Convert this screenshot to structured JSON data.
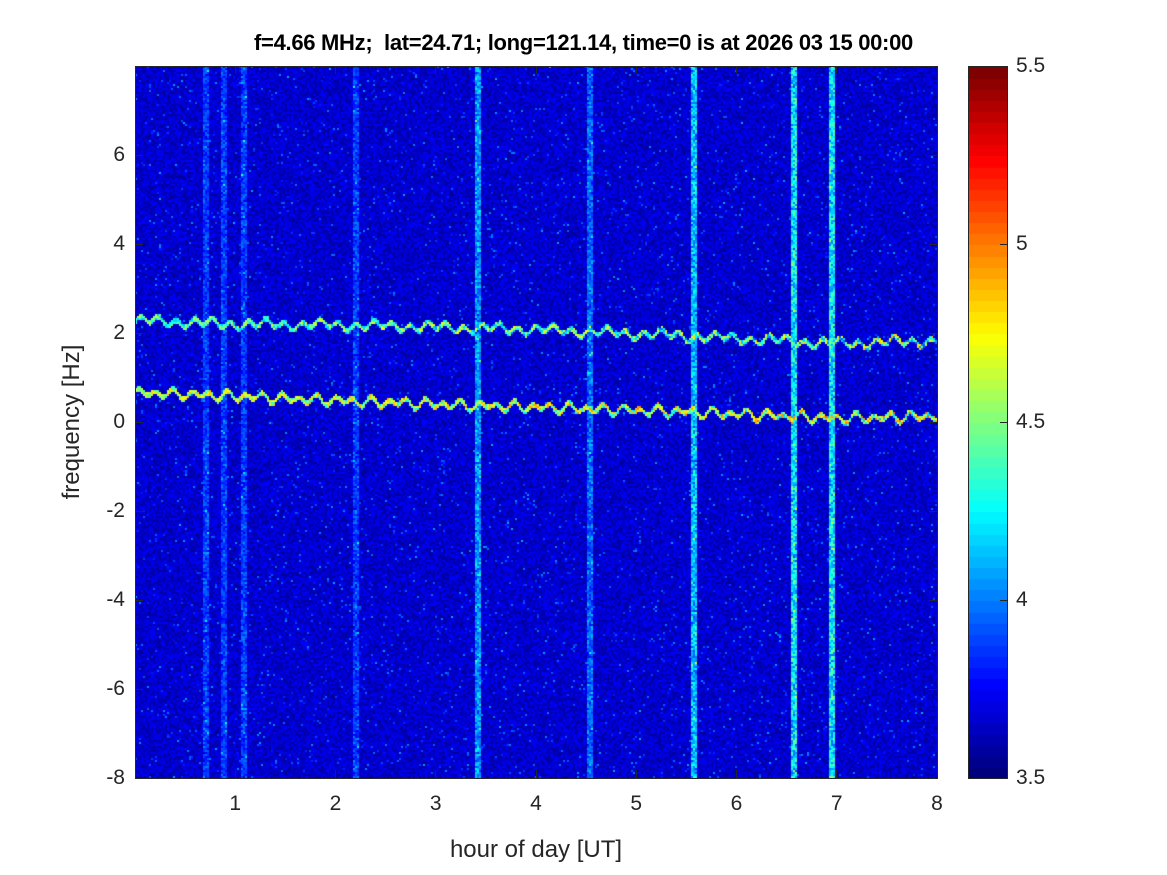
{
  "chart_data": {
    "type": "heatmap",
    "title": "f=4.66 MHz;  lat=24.71; long=121.14, time=0 is at 2026 03 15 00:00",
    "xlabel": "hour of day [UT]",
    "ylabel": "frequency [Hz]",
    "xlim": [
      0,
      8
    ],
    "ylim": [
      -8,
      8
    ],
    "xticks": [
      1,
      2,
      3,
      4,
      5,
      6,
      7,
      8
    ],
    "yticks": [
      -8,
      -6,
      -4,
      -2,
      0,
      2,
      4,
      6
    ],
    "colormap": "jet",
    "clim": [
      3.5,
      5.5
    ],
    "colorbar_ticks": [
      3.5,
      4,
      4.5,
      5,
      5.5
    ],
    "colorbar_location": "right",
    "background_level": 3.65,
    "doppler_traces": [
      {
        "x": [
          0,
          1,
          2,
          3,
          4,
          5,
          6,
          7,
          8
        ],
        "y": [
          2.3,
          2.22,
          2.2,
          2.15,
          2.1,
          2.0,
          1.9,
          1.78,
          1.85
        ],
        "level": 4.4
      },
      {
        "x": [
          0,
          1,
          2,
          3,
          4,
          5,
          6,
          7,
          8
        ],
        "y": [
          0.68,
          0.6,
          0.5,
          0.42,
          0.35,
          0.28,
          0.2,
          0.1,
          0.15
        ],
        "level": 4.6
      }
    ],
    "broadband_interference_hours": [
      0.7,
      0.88,
      1.07,
      2.2,
      3.42,
      4.52,
      5.57,
      6.57,
      6.95
    ],
    "broadband_interference_levels": [
      3.9,
      3.9,
      3.9,
      3.9,
      4.1,
      4.0,
      4.2,
      4.3,
      4.3
    ]
  }
}
